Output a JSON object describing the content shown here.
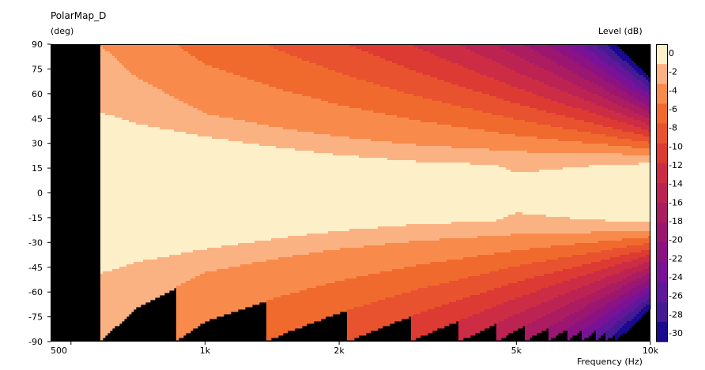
{
  "chart_data": {
    "type": "heatmap",
    "title": "PolarMap_D",
    "ylabel": "(deg)",
    "xlabel": "Frequency  (Hz)",
    "colorbar_label": "Level  (dB)",
    "x_scale": "log",
    "xlim": [
      450,
      10000
    ],
    "ylim": [
      -90,
      90
    ],
    "x_ticks": [
      {
        "value": 500,
        "label": "500"
      },
      {
        "value": 1000,
        "label": "1k"
      },
      {
        "value": 2000,
        "label": "2k"
      },
      {
        "value": 5000,
        "label": "5k"
      },
      {
        "value": 10000,
        "label": "10k"
      }
    ],
    "y_ticks": [
      90,
      75,
      60,
      45,
      30,
      15,
      0,
      -15,
      -30,
      -45,
      -60,
      -75,
      -90
    ],
    "colorbar_ticks": [
      0,
      -2,
      -4,
      -6,
      -8,
      -10,
      -12,
      -14,
      -16,
      -18,
      -20,
      -22,
      -24,
      -26,
      -28,
      -30
    ],
    "levels": [
      {
        "min": -2,
        "color": "#fdefc8"
      },
      {
        "min": -4,
        "color": "#fbb283"
      },
      {
        "min": -6,
        "color": "#f88b4c"
      },
      {
        "min": -8,
        "color": "#f06a2e"
      },
      {
        "min": -10,
        "color": "#e8522f"
      },
      {
        "min": -12,
        "color": "#dc3a32"
      },
      {
        "min": -14,
        "color": "#cc2c44"
      },
      {
        "min": -16,
        "color": "#bd2352"
      },
      {
        "min": -18,
        "color": "#ab1c60"
      },
      {
        "min": -20,
        "color": "#9a1670"
      },
      {
        "min": -22,
        "color": "#8a1283"
      },
      {
        "min": -24,
        "color": "#791296"
      },
      {
        "min": -26,
        "color": "#60179a"
      },
      {
        "min": -28,
        "color": "#461a93"
      },
      {
        "min": -30,
        "color": "#190a8f"
      },
      {
        "min": -999,
        "color": "#000000"
      }
    ],
    "data_start_hz": 580,
    "contours": {
      "freqs_hz": [
        580,
        700,
        1000,
        1500,
        2000,
        3000,
        4500,
        5000,
        7000,
        10000
      ],
      "minus2_deg": [
        49,
        42,
        34,
        27,
        23,
        19,
        17,
        12,
        16,
        18
      ],
      "minus4_deg": [
        90,
        70,
        48,
        39,
        34,
        29,
        26,
        25,
        24,
        23
      ],
      "minus30_deg_at_10k": 70
    },
    "grid": false,
    "legend": "colorbar-right"
  }
}
